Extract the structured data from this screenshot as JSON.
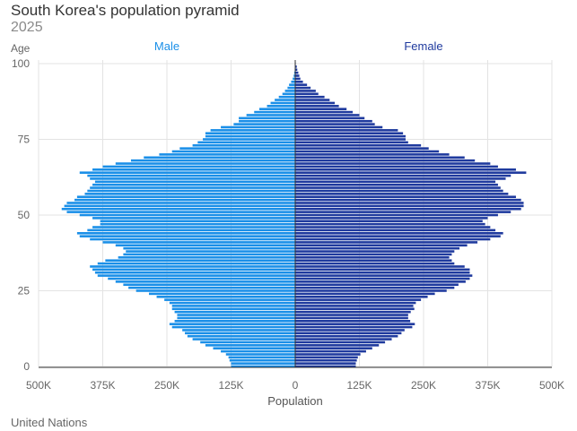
{
  "title": "South Korea's population pyramid",
  "subtitle": "2025",
  "source": "United Nations",
  "chart_data": {
    "type": "bar",
    "orientation": "horizontal-pyramid",
    "ylabel": "Age",
    "xlabel": "Population",
    "y_ticks": [
      "0",
      "25",
      "50",
      "75",
      "100"
    ],
    "x_ticks": [
      "500K",
      "375K",
      "250K",
      "125K",
      "0",
      "125K",
      "250K",
      "375K",
      "500K"
    ],
    "xlim": [
      -500000,
      500000
    ],
    "ylim": [
      0,
      100
    ],
    "colors": {
      "male": "#1a8fe8",
      "female": "#1f3a9e"
    },
    "ages": [
      0,
      1,
      2,
      3,
      4,
      5,
      6,
      7,
      8,
      9,
      10,
      11,
      12,
      13,
      14,
      15,
      16,
      17,
      18,
      19,
      20,
      21,
      22,
      23,
      24,
      25,
      26,
      27,
      28,
      29,
      30,
      31,
      32,
      33,
      34,
      35,
      36,
      37,
      38,
      39,
      40,
      41,
      42,
      43,
      44,
      45,
      46,
      47,
      48,
      49,
      50,
      51,
      52,
      53,
      54,
      55,
      56,
      57,
      58,
      59,
      60,
      61,
      62,
      63,
      64,
      65,
      66,
      67,
      68,
      69,
      70,
      71,
      72,
      73,
      74,
      75,
      76,
      77,
      78,
      79,
      80,
      81,
      82,
      83,
      84,
      85,
      86,
      87,
      88,
      89,
      90,
      91,
      92,
      93,
      94,
      95,
      96,
      97,
      98,
      99,
      100
    ],
    "series": [
      {
        "name": "Male",
        "values": [
          125000,
          125000,
          128000,
          130000,
          135000,
          145000,
          160000,
          175000,
          185000,
          200000,
          210000,
          215000,
          220000,
          240000,
          245000,
          235000,
          230000,
          230000,
          235000,
          240000,
          240000,
          245000,
          255000,
          270000,
          285000,
          310000,
          325000,
          335000,
          350000,
          365000,
          385000,
          390000,
          395000,
          400000,
          385000,
          370000,
          345000,
          335000,
          330000,
          335000,
          350000,
          375000,
          400000,
          420000,
          425000,
          405000,
          395000,
          380000,
          380000,
          395000,
          420000,
          445000,
          455000,
          450000,
          445000,
          430000,
          425000,
          410000,
          405000,
          400000,
          395000,
          390000,
          400000,
          405000,
          420000,
          395000,
          375000,
          350000,
          320000,
          295000,
          265000,
          240000,
          225000,
          200000,
          190000,
          180000,
          175000,
          175000,
          165000,
          145000,
          120000,
          110000,
          110000,
          95000,
          80000,
          70000,
          55000,
          48000,
          40000,
          32000,
          25000,
          20000,
          15000,
          12000,
          8000,
          5000,
          3000,
          2000,
          1000,
          500,
          200
        ]
      },
      {
        "name": "Female",
        "values": [
          118000,
          118000,
          120000,
          122000,
          127000,
          138000,
          150000,
          163000,
          175000,
          188000,
          200000,
          207000,
          213000,
          228000,
          233000,
          224000,
          220000,
          220000,
          225000,
          232000,
          230000,
          235000,
          245000,
          258000,
          272000,
          295000,
          310000,
          318000,
          332000,
          340000,
          345000,
          340000,
          340000,
          330000,
          310000,
          305000,
          300000,
          305000,
          310000,
          320000,
          335000,
          355000,
          380000,
          400000,
          405000,
          390000,
          380000,
          370000,
          365000,
          375000,
          395000,
          420000,
          440000,
          445000,
          445000,
          440000,
          430000,
          415000,
          405000,
          400000,
          395000,
          390000,
          410000,
          420000,
          450000,
          430000,
          395000,
          380000,
          350000,
          330000,
          300000,
          280000,
          260000,
          245000,
          220000,
          215000,
          215000,
          210000,
          200000,
          170000,
          155000,
          150000,
          135000,
          125000,
          112000,
          100000,
          85000,
          77000,
          67000,
          57000,
          45000,
          40000,
          30000,
          23000,
          15000,
          10000,
          8000,
          6000,
          4000,
          3000,
          1000
        ]
      }
    ]
  }
}
